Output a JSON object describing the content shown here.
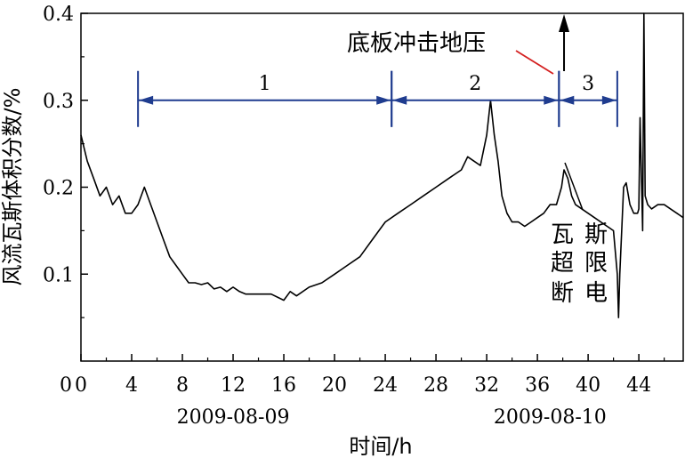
{
  "chart_data": {
    "type": "line",
    "xlabel": "时间/h",
    "ylabel": "风流瓦斯体积分数/%",
    "xlim": [
      0,
      47.5
    ],
    "ylim": [
      0,
      0.4
    ],
    "x_ticks": [
      0,
      4,
      8,
      12,
      16,
      20,
      24,
      28,
      32,
      36,
      40,
      44
    ],
    "x_tick_labels": [
      "0",
      "4",
      "8",
      "12",
      "16",
      "20",
      "24",
      "28",
      "32",
      "36",
      "40",
      "44"
    ],
    "y_ticks": [
      0.1,
      0.2,
      0.3,
      0.4
    ],
    "y_tick_labels": [
      "0.1",
      "0.2",
      "0.3",
      "0.4"
    ],
    "date_labels": [
      {
        "x": 12,
        "text": "2009-08-09"
      },
      {
        "x": 37,
        "text": "2009-08-10"
      }
    ],
    "grid": false,
    "series": [
      {
        "x": [
          0,
          0.5,
          1,
          1.5,
          2,
          2.5,
          3,
          3.5,
          4,
          4.5,
          5,
          5.5,
          6,
          6.5,
          7,
          7.5,
          8,
          8.5,
          9,
          9.5,
          10,
          10.5,
          11,
          11.5,
          12,
          12.5,
          13,
          14,
          15,
          16,
          16.5,
          17,
          18,
          19,
          20,
          21,
          22,
          23,
          24,
          25,
          26,
          27,
          28,
          29,
          30,
          30.5,
          31,
          31.5,
          32,
          32.3,
          32.6,
          32.9,
          33.2,
          33.6,
          34,
          34.5,
          35,
          35.5,
          36,
          36.5,
          37,
          37.5,
          37.9,
          38.1,
          38.4,
          38.7,
          39,
          39.5,
          40,
          40.5,
          41,
          41.5,
          42,
          42.3,
          42.4,
          42.5,
          42.8,
          43,
          43.3,
          43.6,
          43.9,
          44,
          44.1,
          44.3,
          44.4,
          44.5,
          44.7,
          45,
          45.5,
          46,
          46.5,
          47,
          47.5
        ],
        "y": [
          0.26,
          0.23,
          0.21,
          0.19,
          0.2,
          0.18,
          0.19,
          0.17,
          0.17,
          0.18,
          0.2,
          0.18,
          0.16,
          0.14,
          0.12,
          0.11,
          0.1,
          0.09,
          0.09,
          0.088,
          0.09,
          0.083,
          0.085,
          0.08,
          0.085,
          0.08,
          0.077,
          0.077,
          0.077,
          0.07,
          0.08,
          0.075,
          0.085,
          0.09,
          0.1,
          0.11,
          0.12,
          0.14,
          0.16,
          0.17,
          0.18,
          0.19,
          0.2,
          0.21,
          0.22,
          0.235,
          0.23,
          0.225,
          0.26,
          0.3,
          0.26,
          0.23,
          0.19,
          0.17,
          0.16,
          0.16,
          0.155,
          0.16,
          0.165,
          0.17,
          0.18,
          0.18,
          0.2,
          0.22,
          0.21,
          0.19,
          0.18,
          0.175,
          0.17,
          0.165,
          0.16,
          0.155,
          0.15,
          0.1,
          0.05,
          0.1,
          0.2,
          0.205,
          0.18,
          0.17,
          0.17,
          0.175,
          0.28,
          0.15,
          0.4,
          0.19,
          0.18,
          0.175,
          0.18,
          0.18,
          0.175,
          0.17,
          0.165
        ]
      }
    ],
    "periods": [
      {
        "label": "1",
        "x_start": 4.5,
        "x_end": 24.5,
        "y": 0.3
      },
      {
        "label": "2",
        "x_start": 24.5,
        "x_end": 37.7,
        "y": 0.3
      },
      {
        "label": "3",
        "x_start": 37.7,
        "x_end": 42.3,
        "y": 0.3
      }
    ],
    "annotations": [
      {
        "text": "底板冲击地压",
        "color": "#d42020"
      },
      {
        "text_lines": [
          "瓦斯",
          "超限",
          "断电"
        ],
        "color": "#000000"
      }
    ]
  }
}
